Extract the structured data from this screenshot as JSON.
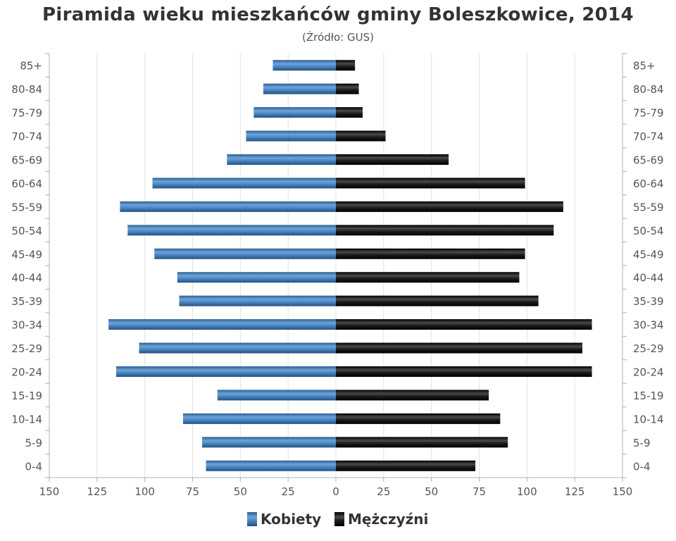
{
  "chart_data": {
    "type": "bar",
    "orientation": "horizontal",
    "title": "Piramida wieku mieszkańców gminy Boleszkowice, 2014",
    "subtitle": "(Źródło: GUS)",
    "categories": [
      "0-4",
      "5-9",
      "10-14",
      "15-19",
      "20-24",
      "25-29",
      "30-34",
      "35-39",
      "40-44",
      "45-49",
      "50-54",
      "55-59",
      "60-64",
      "65-69",
      "70-74",
      "75-79",
      "80-84",
      "85+"
    ],
    "series": [
      {
        "name": "Kobiety",
        "color": "#4a88c7",
        "values": [
          68,
          70,
          80,
          62,
          115,
          103,
          119,
          82,
          83,
          95,
          109,
          113,
          96,
          57,
          47,
          43,
          38,
          33
        ]
      },
      {
        "name": "Mężczyźni",
        "color": "#1a1a1a",
        "values": [
          73,
          90,
          86,
          80,
          134,
          129,
          134,
          106,
          96,
          99,
          114,
          119,
          99,
          59,
          26,
          14,
          12,
          10
        ]
      }
    ],
    "xlim": [
      -150,
      150
    ],
    "x_ticks": [
      "150",
      "125",
      "100",
      "75",
      "50",
      "25",
      "0",
      "25",
      "50",
      "75",
      "100",
      "125",
      "150"
    ],
    "grid": true,
    "legend_position": "bottom"
  }
}
